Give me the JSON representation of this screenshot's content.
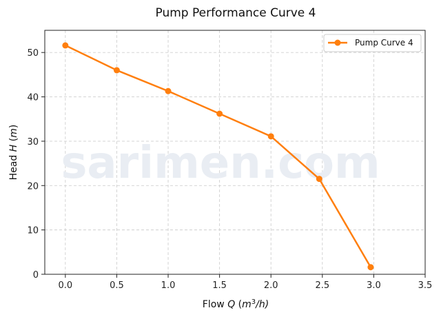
{
  "chart_data": {
    "type": "line",
    "title": "Pump Performance Curve 4",
    "xlabel": {
      "prefix": "Flow ",
      "var": "Q",
      "unit_open": " (",
      "unit_m": "m",
      "unit_exp": "3",
      "unit_rest": "/h)"
    },
    "ylabel": {
      "prefix": "Head ",
      "var": "H",
      "unit_open": " (",
      "unit_m": "m",
      "unit_close": ")"
    },
    "xlim": [
      -0.2,
      3.5
    ],
    "ylim": [
      0,
      55
    ],
    "xticks": [
      "0.0",
      "0.5",
      "1.0",
      "1.5",
      "2.0",
      "2.5",
      "3.0",
      "3.5"
    ],
    "xtick_values": [
      0,
      0.5,
      1.0,
      1.5,
      2.0,
      2.5,
      3.0,
      3.5
    ],
    "yticks": [
      "0",
      "10",
      "20",
      "30",
      "40",
      "50"
    ],
    "ytick_values": [
      0,
      10,
      20,
      30,
      40,
      50
    ],
    "grid": true,
    "legend_position": "top-right",
    "series": [
      {
        "name": "Pump Curve 4",
        "color": "#ff7f0e",
        "x": [
          0.0,
          0.5,
          1.0,
          1.5,
          2.0,
          2.47,
          2.97
        ],
        "y": [
          51.6,
          46.0,
          41.3,
          36.2,
          31.1,
          21.5,
          1.6
        ]
      }
    ]
  },
  "watermark": "sarimen.com"
}
